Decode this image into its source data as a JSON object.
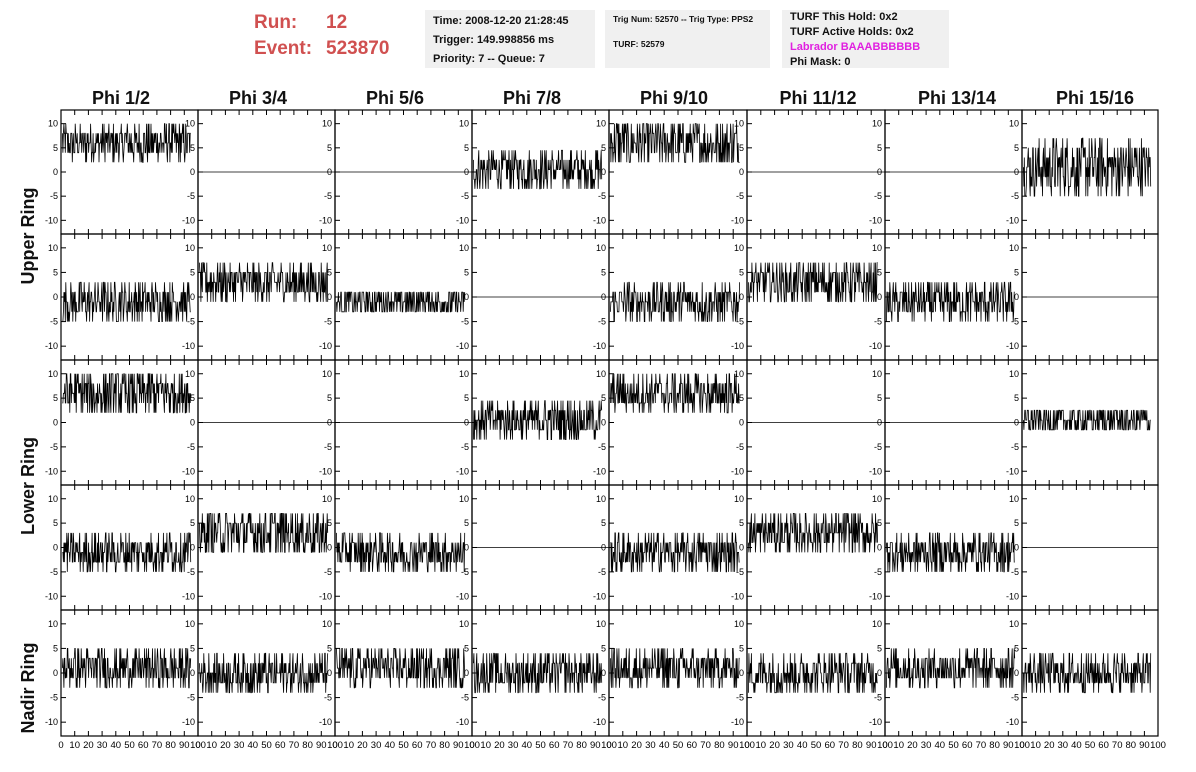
{
  "run": {
    "run_label": "Run:",
    "run_value": "12",
    "event_label": "Event:",
    "event_value": "523870"
  },
  "info1": {
    "time": "Time: 2008-12-20 21:28:45",
    "trigger": "Trigger: 149.998856 ms",
    "priority": "Priority: 7 -- Queue: 7"
  },
  "info2": {
    "trig": "Trig Num: 52570 -- Trig Type: PPS2",
    "turf": "TURF: 52579"
  },
  "info3": {
    "this_hold": "TURF This Hold: 0x2",
    "active_holds": "TURF Active Holds: 0x2",
    "labrador": "Labrador BAAABBBBBB",
    "phi_mask": "Phi Mask: 0"
  },
  "columns": [
    "Phi 1/2",
    "Phi 3/4",
    "Phi 5/6",
    "Phi 7/8",
    "Phi 9/10",
    "Phi 11/12",
    "Phi 13/14",
    "Phi 15/16"
  ],
  "rings": [
    "Upper Ring",
    "Lower Ring",
    "Nadir Ring"
  ],
  "y_ticks": [
    "10",
    "5",
    "0",
    "-5",
    "-10"
  ],
  "x_ticks": [
    "0",
    "10",
    "20",
    "30",
    "40",
    "50",
    "60",
    "70",
    "80",
    "90",
    "100"
  ],
  "colors": {
    "run_text": "#d05050",
    "labrador_text": "#e020e0",
    "info_bg": "#f0f0f0",
    "trace": "#000000"
  },
  "chart_data": {
    "type": "line",
    "xlim": [
      0,
      100
    ],
    "ylim": [
      -12,
      12
    ],
    "description_grid": "5 rows x 8 columns of waveform panels",
    "panels_mean": [
      [
        6,
        0,
        0,
        0.5,
        6,
        0,
        0,
        1
      ],
      [
        -1,
        3,
        -1,
        0,
        -1,
        3,
        -1,
        0
      ],
      [
        6,
        0,
        0,
        0.5,
        6,
        0,
        0,
        0.5
      ],
      [
        -1,
        3,
        -1,
        0,
        -1,
        3,
        -1,
        0
      ],
      [
        1,
        0,
        1,
        0,
        1,
        0,
        1,
        0
      ]
    ],
    "panels_amp": [
      [
        4,
        0,
        0,
        4,
        5,
        0,
        0,
        6
      ],
      [
        4,
        4,
        3,
        0,
        4,
        4,
        4,
        0
      ],
      [
        5,
        0,
        0,
        4,
        4,
        0,
        0,
        3
      ],
      [
        4,
        5,
        4,
        0,
        4,
        4,
        4,
        0
      ],
      [
        4,
        4,
        4,
        4,
        4,
        4,
        4,
        4
      ]
    ]
  }
}
